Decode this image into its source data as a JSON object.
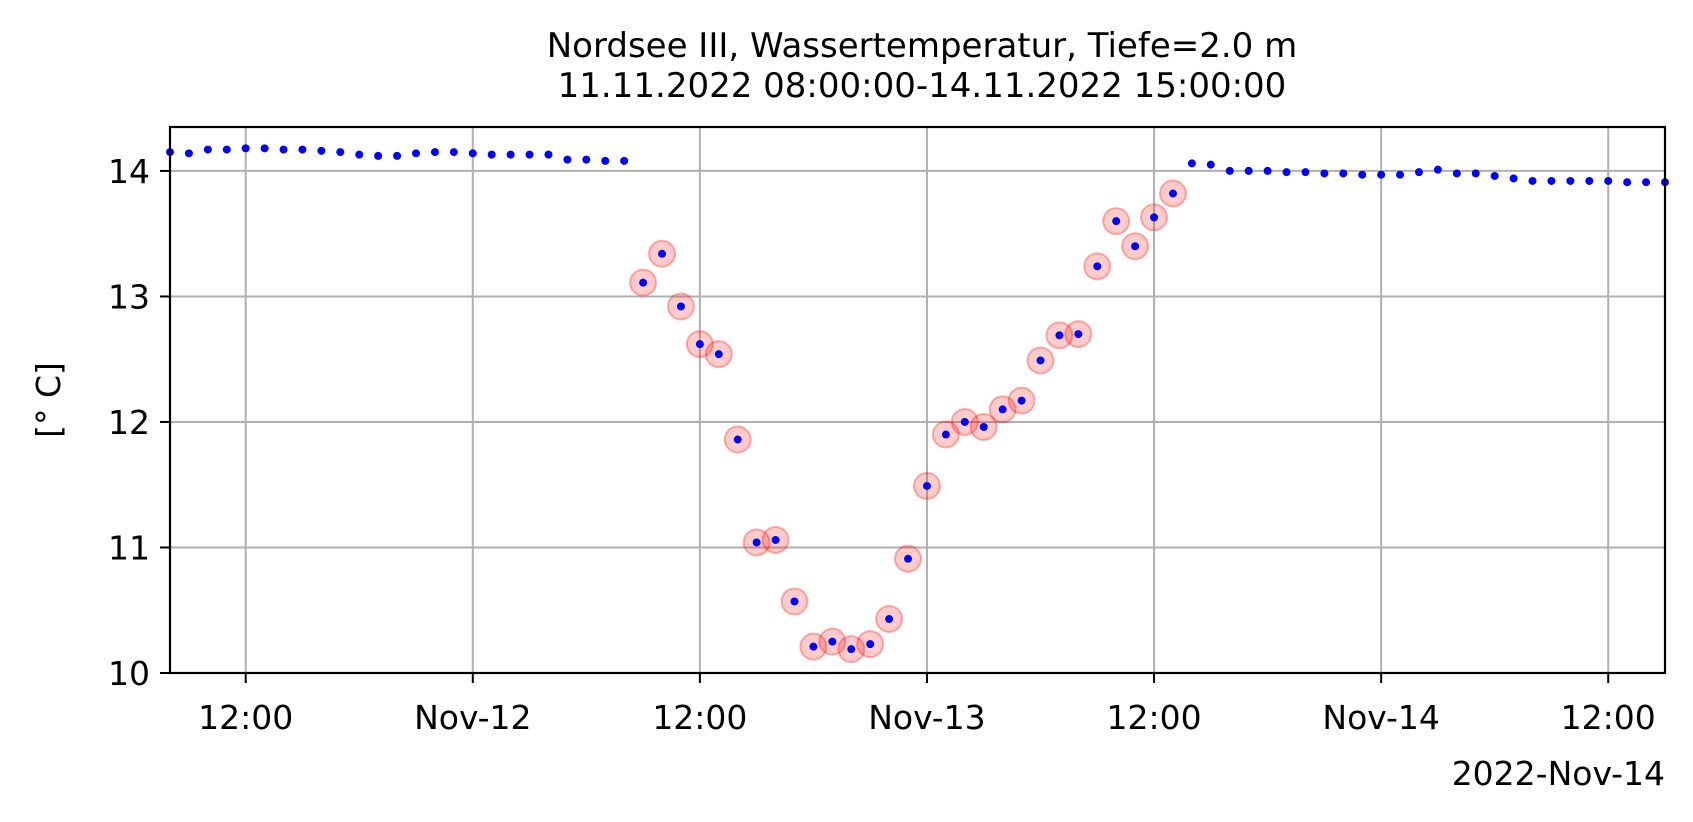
{
  "chart_data": {
    "type": "scatter",
    "title": "Nordsee III, Wassertemperatur, Tiefe=2.0 m",
    "subtitle": "11.11.2022 08:00:00-14.11.2022 15:00:00",
    "xlabel": "",
    "ylabel": "[° C]",
    "offset_label": "2022-Nov-14",
    "xlim": [
      "2022-11-11 08:00",
      "2022-11-14 15:00"
    ],
    "ylim": [
      10,
      14.35
    ],
    "grid": true,
    "x_ticks": [
      {
        "x": "2022-11-11 12:00",
        "label": "12:00"
      },
      {
        "x": "2022-11-12 00:00",
        "label": "Nov-12"
      },
      {
        "x": "2022-11-12 12:00",
        "label": "12:00"
      },
      {
        "x": "2022-11-13 00:00",
        "label": "Nov-13"
      },
      {
        "x": "2022-11-13 12:00",
        "label": "12:00"
      },
      {
        "x": "2022-11-14 00:00",
        "label": "Nov-14"
      },
      {
        "x": "2022-11-14 12:00",
        "label": "12:00"
      }
    ],
    "y_ticks": [
      {
        "y": 10,
        "label": "10"
      },
      {
        "y": 11,
        "label": "11"
      },
      {
        "y": 12,
        "label": "12"
      },
      {
        "y": 13,
        "label": "13"
      },
      {
        "y": 14,
        "label": "14"
      }
    ],
    "colors": {
      "points": "#0000ff",
      "flag": "#ff0000",
      "grid": "#b0b0b0"
    },
    "series": [
      {
        "points": [
          [
            "2022-11-11 08:00",
            14.15
          ],
          [
            "2022-11-11 09:00",
            14.14
          ],
          [
            "2022-11-11 10:00",
            14.17
          ],
          [
            "2022-11-11 11:00",
            14.17
          ],
          [
            "2022-11-11 12:00",
            14.18
          ],
          [
            "2022-11-11 13:00",
            14.18
          ],
          [
            "2022-11-11 14:00",
            14.17
          ],
          [
            "2022-11-11 15:00",
            14.17
          ],
          [
            "2022-11-11 16:00",
            14.16
          ],
          [
            "2022-11-11 17:00",
            14.15
          ],
          [
            "2022-11-11 18:00",
            14.13
          ],
          [
            "2022-11-11 19:00",
            14.12
          ],
          [
            "2022-11-11 20:00",
            14.12
          ],
          [
            "2022-11-11 21:00",
            14.14
          ],
          [
            "2022-11-11 22:00",
            14.15
          ],
          [
            "2022-11-11 23:00",
            14.15
          ],
          [
            "2022-11-12 00:00",
            14.14
          ],
          [
            "2022-11-12 01:00",
            14.13
          ],
          [
            "2022-11-12 02:00",
            14.13
          ],
          [
            "2022-11-12 03:00",
            14.13
          ],
          [
            "2022-11-12 04:00",
            14.13
          ],
          [
            "2022-11-12 05:00",
            14.09
          ],
          [
            "2022-11-12 06:00",
            14.09
          ],
          [
            "2022-11-12 07:00",
            14.08
          ],
          [
            "2022-11-12 08:00",
            14.08
          ],
          [
            "2022-11-12 09:00",
            13.11
          ],
          [
            "2022-11-12 10:00",
            13.34
          ],
          [
            "2022-11-12 11:00",
            12.92
          ],
          [
            "2022-11-12 12:00",
            12.62
          ],
          [
            "2022-11-12 13:00",
            12.54
          ],
          [
            "2022-11-12 14:00",
            11.86
          ],
          [
            "2022-11-12 15:00",
            11.04
          ],
          [
            "2022-11-12 16:00",
            11.06
          ],
          [
            "2022-11-12 17:00",
            10.57
          ],
          [
            "2022-11-12 18:00",
            10.21
          ],
          [
            "2022-11-12 19:00",
            10.25
          ],
          [
            "2022-11-12 20:00",
            10.19
          ],
          [
            "2022-11-12 21:00",
            10.23
          ],
          [
            "2022-11-12 22:00",
            10.43
          ],
          [
            "2022-11-12 23:00",
            10.91
          ],
          [
            "2022-11-13 00:00",
            11.49
          ],
          [
            "2022-11-13 01:00",
            11.9
          ],
          [
            "2022-11-13 02:00",
            12.0
          ],
          [
            "2022-11-13 03:00",
            11.96
          ],
          [
            "2022-11-13 04:00",
            12.1
          ],
          [
            "2022-11-13 05:00",
            12.17
          ],
          [
            "2022-11-13 06:00",
            12.49
          ],
          [
            "2022-11-13 07:00",
            12.69
          ],
          [
            "2022-11-13 08:00",
            12.7
          ],
          [
            "2022-11-13 09:00",
            13.24
          ],
          [
            "2022-11-13 10:00",
            13.6
          ],
          [
            "2022-11-13 11:00",
            13.4
          ],
          [
            "2022-11-13 12:00",
            13.63
          ],
          [
            "2022-11-13 13:00",
            13.82
          ],
          [
            "2022-11-13 14:00",
            14.06
          ],
          [
            "2022-11-13 15:00",
            14.05
          ],
          [
            "2022-11-13 16:00",
            14.0
          ],
          [
            "2022-11-13 17:00",
            14.0
          ],
          [
            "2022-11-13 18:00",
            14.0
          ],
          [
            "2022-11-13 19:00",
            13.99
          ],
          [
            "2022-11-13 20:00",
            13.99
          ],
          [
            "2022-11-13 21:00",
            13.98
          ],
          [
            "2022-11-13 22:00",
            13.98
          ],
          [
            "2022-11-13 23:00",
            13.97
          ],
          [
            "2022-11-14 00:00",
            13.97
          ],
          [
            "2022-11-14 01:00",
            13.97
          ],
          [
            "2022-11-14 02:00",
            13.99
          ],
          [
            "2022-11-14 03:00",
            14.01
          ],
          [
            "2022-11-14 04:00",
            13.98
          ],
          [
            "2022-11-14 05:00",
            13.98
          ],
          [
            "2022-11-14 06:00",
            13.96
          ],
          [
            "2022-11-14 07:00",
            13.94
          ],
          [
            "2022-11-14 08:00",
            13.92
          ],
          [
            "2022-11-14 09:00",
            13.92
          ],
          [
            "2022-11-14 10:00",
            13.92
          ],
          [
            "2022-11-14 11:00",
            13.92
          ],
          [
            "2022-11-14 12:00",
            13.92
          ],
          [
            "2022-11-14 13:00",
            13.91
          ],
          [
            "2022-11-14 14:00",
            13.91
          ],
          [
            "2022-11-14 15:00",
            13.91
          ]
        ],
        "flagged_range": [
          "2022-11-12 09:00",
          "2022-11-13 13:00"
        ]
      }
    ]
  }
}
